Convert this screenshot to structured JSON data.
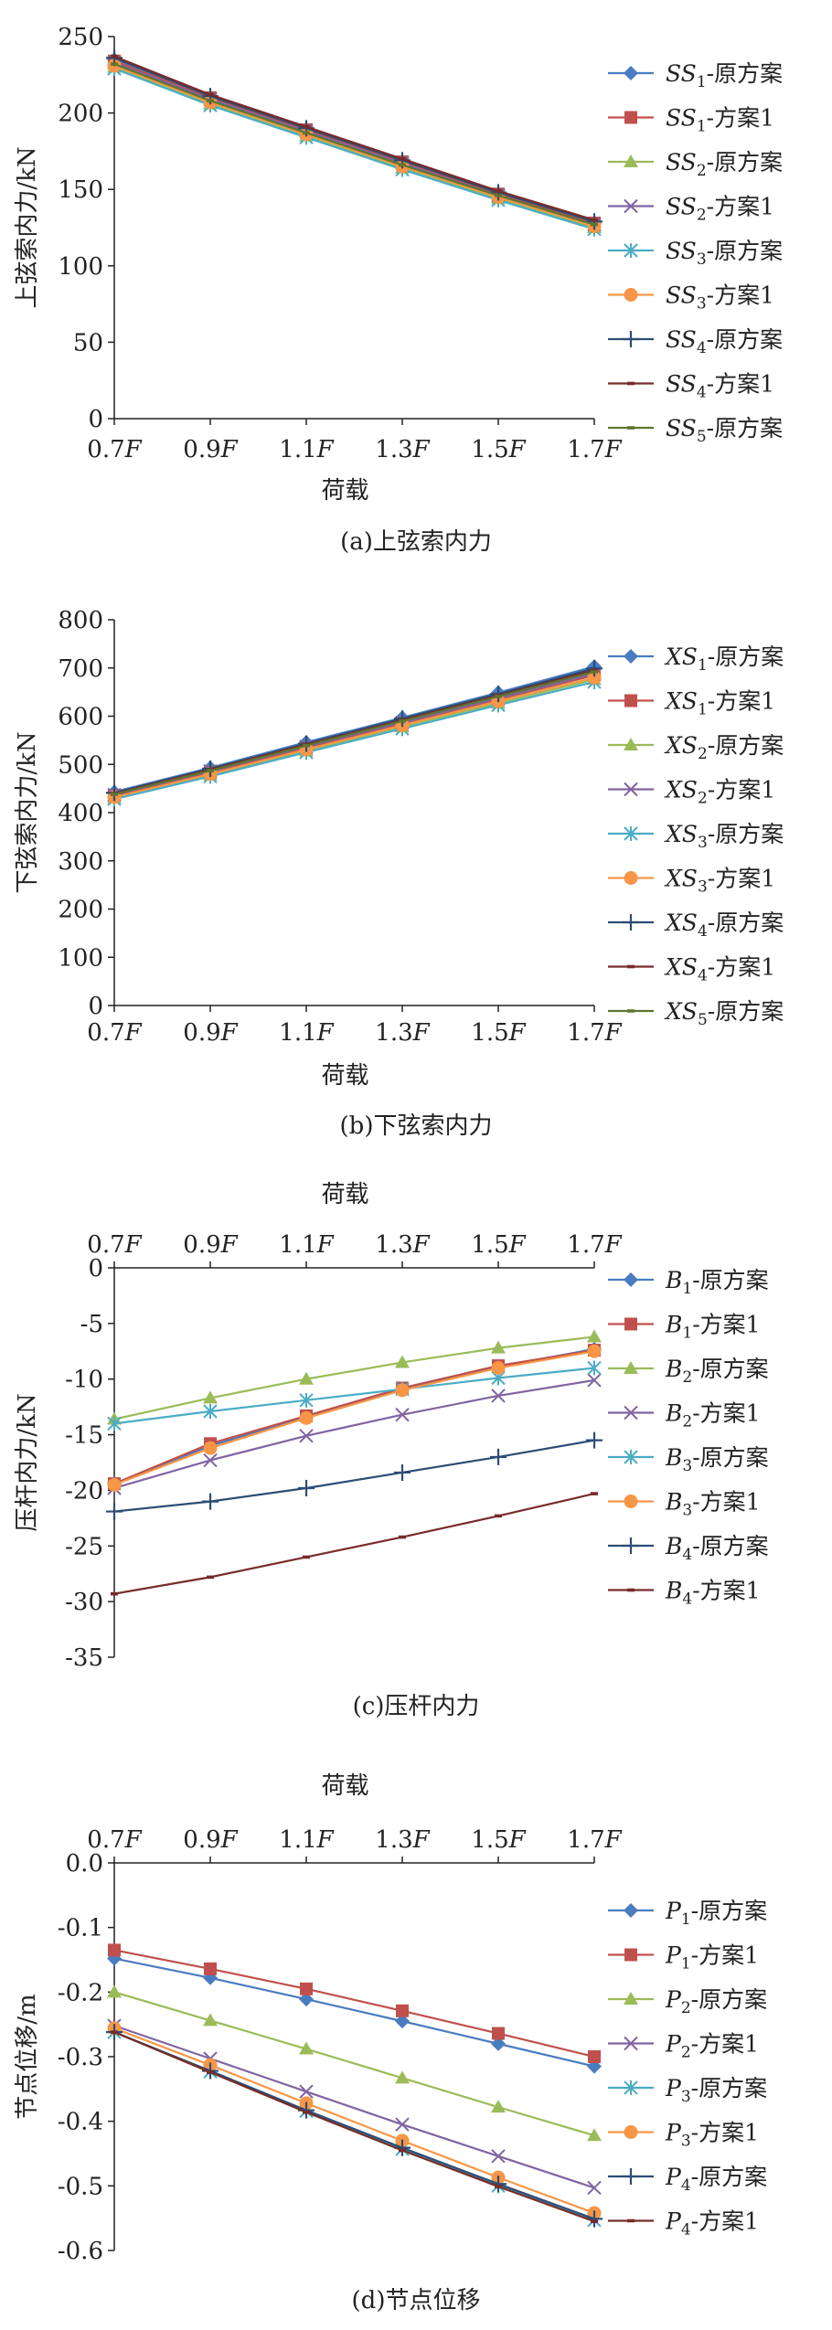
{
  "legend_suffix_original": "原方案",
  "legend_suffix_alt": "方案1",
  "charts": [
    {
      "type": "line",
      "caption": "(a)上弦索内力",
      "xlabel": "荷载",
      "ylabel": "上弦索内力/kN",
      "x_position": "bottom",
      "categories": [
        "0.7F",
        "0.9F",
        "1.1F",
        "1.3F",
        "1.5F",
        "1.7F"
      ],
      "ylim": [
        0,
        250
      ],
      "yticks": [
        0,
        50,
        100,
        150,
        200,
        250
      ],
      "legend_prefix": "SS",
      "series": [
        {
          "name": "SS1-原方案",
          "sub": "1",
          "alt": false,
          "color": "#4a7cc0",
          "marker": "diamond",
          "values": [
            235,
            210,
            189,
            168,
            147,
            128
          ]
        },
        {
          "name": "SS1-方案1",
          "sub": "1",
          "alt": true,
          "color": "#c0504d",
          "marker": "square",
          "values": [
            234,
            210,
            189,
            168,
            147,
            128
          ]
        },
        {
          "name": "SS2-原方案",
          "sub": "2",
          "alt": false,
          "color": "#9bbb59",
          "marker": "triangle",
          "values": [
            230,
            206,
            185,
            164,
            144,
            125
          ]
        },
        {
          "name": "SS2-方案1",
          "sub": "2",
          "alt": true,
          "color": "#8064a2",
          "marker": "x",
          "values": [
            233,
            209,
            188,
            167,
            146,
            127
          ]
        },
        {
          "name": "SS3-原方案",
          "sub": "3",
          "alt": false,
          "color": "#4bacc6",
          "marker": "asterisk",
          "values": [
            229,
            205,
            184,
            163,
            143,
            124
          ]
        },
        {
          "name": "SS3-方案1",
          "sub": "3",
          "alt": true,
          "color": "#f79646",
          "marker": "circle",
          "values": [
            231,
            207,
            186,
            165,
            145,
            126
          ]
        },
        {
          "name": "SS4-原方案",
          "sub": "4",
          "alt": false,
          "color": "#2c4d75",
          "marker": "plus",
          "values": [
            236,
            211,
            190,
            169,
            148,
            129
          ]
        },
        {
          "name": "SS4-方案1",
          "sub": "4",
          "alt": true,
          "color": "#772c2a",
          "marker": "dash",
          "values": [
            237,
            212,
            191,
            170,
            149,
            130
          ]
        },
        {
          "name": "SS5-原方案",
          "sub": "5",
          "alt": false,
          "color": "#5f7530",
          "marker": "dash",
          "values": [
            232,
            208,
            187,
            166,
            146,
            127
          ]
        }
      ]
    },
    {
      "type": "line",
      "caption": "(b)下弦索内力",
      "xlabel": "荷载",
      "ylabel": "下弦索内力/kN",
      "x_position": "bottom",
      "categories": [
        "0.7F",
        "0.9F",
        "1.1F",
        "1.3F",
        "1.5F",
        "1.7F"
      ],
      "ylim": [
        0,
        800
      ],
      "yticks": [
        0,
        100,
        200,
        300,
        400,
        500,
        600,
        700,
        800
      ],
      "legend_prefix": "XS",
      "series": [
        {
          "name": "XS1-原方案",
          "sub": "1",
          "alt": false,
          "color": "#4a7cc0",
          "marker": "diamond",
          "values": [
            443,
            493,
            546,
            597,
            649,
            703
          ]
        },
        {
          "name": "XS1-方案1",
          "sub": "1",
          "alt": true,
          "color": "#c0504d",
          "marker": "square",
          "values": [
            435,
            483,
            534,
            585,
            635,
            685
          ]
        },
        {
          "name": "XS2-原方案",
          "sub": "2",
          "alt": false,
          "color": "#9bbb59",
          "marker": "triangle",
          "values": [
            430,
            478,
            528,
            578,
            627,
            676
          ]
        },
        {
          "name": "XS2-方案1",
          "sub": "2",
          "alt": true,
          "color": "#8064a2",
          "marker": "x",
          "values": [
            437,
            486,
            537,
            587,
            637,
            688
          ]
        },
        {
          "name": "XS3-原方案",
          "sub": "3",
          "alt": false,
          "color": "#4bacc6",
          "marker": "asterisk",
          "values": [
            428,
            475,
            525,
            574,
            623,
            671
          ]
        },
        {
          "name": "XS3-方案1",
          "sub": "3",
          "alt": true,
          "color": "#f79646",
          "marker": "circle",
          "values": [
            432,
            480,
            531,
            581,
            631,
            680
          ]
        },
        {
          "name": "XS4-原方案",
          "sub": "4",
          "alt": false,
          "color": "#2c4d75",
          "marker": "plus",
          "values": [
            441,
            491,
            543,
            595,
            646,
            699
          ]
        },
        {
          "name": "XS4-方案1",
          "sub": "4",
          "alt": true,
          "color": "#772c2a",
          "marker": "dash",
          "values": [
            439,
            489,
            541,
            592,
            643,
            695
          ]
        },
        {
          "name": "XS5-原方案",
          "sub": "5",
          "alt": false,
          "color": "#5f7530",
          "marker": "dash",
          "values": [
            438,
            487,
            539,
            590,
            641,
            692
          ]
        }
      ]
    },
    {
      "type": "line",
      "caption": "(c)压杆内力",
      "xlabel": "荷载",
      "ylabel": "压杆内力/kN",
      "x_position": "top",
      "categories": [
        "0.7F",
        "0.9F",
        "1.1F",
        "1.3F",
        "1.5F",
        "1.7F"
      ],
      "ylim": [
        -35,
        0
      ],
      "yticks": [
        0,
        -5,
        -10,
        -15,
        -20,
        -25,
        -30,
        -35
      ],
      "legend_prefix": "B",
      "series": [
        {
          "name": "B1-原方案",
          "sub": "1",
          "alt": false,
          "color": "#4a7cc0",
          "marker": "diamond",
          "values": [
            -19.4,
            -16.0,
            -13.4,
            -10.9,
            -8.9,
            -7.3
          ]
        },
        {
          "name": "B1-方案1",
          "sub": "1",
          "alt": true,
          "color": "#c0504d",
          "marker": "square",
          "values": [
            -19.4,
            -15.8,
            -13.3,
            -10.8,
            -8.8,
            -7.4
          ]
        },
        {
          "name": "B2-原方案",
          "sub": "2",
          "alt": false,
          "color": "#9bbb59",
          "marker": "triangle",
          "values": [
            -13.6,
            -11.7,
            -10.0,
            -8.5,
            -7.2,
            -6.2
          ]
        },
        {
          "name": "B2-方案1",
          "sub": "2",
          "alt": true,
          "color": "#8064a2",
          "marker": "x",
          "values": [
            -19.8,
            -17.3,
            -15.1,
            -13.2,
            -11.5,
            -10.1
          ]
        },
        {
          "name": "B3-原方案",
          "sub": "3",
          "alt": false,
          "color": "#4bacc6",
          "marker": "asterisk",
          "values": [
            -14.0,
            -12.9,
            -11.9,
            -10.9,
            -9.9,
            -9.0
          ]
        },
        {
          "name": "B3-方案1",
          "sub": "3",
          "alt": true,
          "color": "#f79646",
          "marker": "circle",
          "values": [
            -19.5,
            -16.2,
            -13.5,
            -11.0,
            -9.0,
            -7.5
          ]
        },
        {
          "name": "B4-原方案",
          "sub": "4",
          "alt": false,
          "color": "#2c4d75",
          "marker": "plus",
          "values": [
            -21.9,
            -21.0,
            -19.8,
            -18.4,
            -17.0,
            -15.5
          ]
        },
        {
          "name": "B4-方案1",
          "sub": "4",
          "alt": true,
          "color": "#772c2a",
          "marker": "dash",
          "values": [
            -29.3,
            -27.8,
            -26.0,
            -24.2,
            -22.3,
            -20.3
          ]
        }
      ]
    },
    {
      "type": "line",
      "caption": "(d)节点位移",
      "xlabel": "荷载",
      "ylabel": "节点位移/m",
      "x_position": "top",
      "categories": [
        "0.7F",
        "0.9F",
        "1.1F",
        "1.3F",
        "1.5F",
        "1.7F"
      ],
      "ylim": [
        -0.6,
        0.0
      ],
      "yticks": [
        "0.0",
        "-0.1",
        "-0.2",
        "-0.3",
        "-0.4",
        "-0.5",
        "-0.6"
      ],
      "legend_prefix": "P",
      "series": [
        {
          "name": "P1-原方案",
          "sub": "1",
          "alt": false,
          "color": "#4a7cc0",
          "marker": "diamond",
          "values": [
            -0.148,
            -0.178,
            -0.211,
            -0.245,
            -0.28,
            -0.315
          ]
        },
        {
          "name": "P1-方案1",
          "sub": "1",
          "alt": true,
          "color": "#c0504d",
          "marker": "square",
          "values": [
            -0.135,
            -0.164,
            -0.195,
            -0.229,
            -0.264,
            -0.3
          ]
        },
        {
          "name": "P2-原方案",
          "sub": "2",
          "alt": false,
          "color": "#9bbb59",
          "marker": "triangle",
          "values": [
            -0.2,
            -0.244,
            -0.288,
            -0.333,
            -0.378,
            -0.422
          ]
        },
        {
          "name": "P2-方案1",
          "sub": "2",
          "alt": true,
          "color": "#8064a2",
          "marker": "x",
          "values": [
            -0.252,
            -0.303,
            -0.354,
            -0.405,
            -0.454,
            -0.503
          ]
        },
        {
          "name": "P3-原方案",
          "sub": "3",
          "alt": false,
          "color": "#4bacc6",
          "marker": "asterisk",
          "values": [
            -0.262,
            -0.323,
            -0.384,
            -0.443,
            -0.5,
            -0.553
          ]
        },
        {
          "name": "P3-方案1",
          "sub": "3",
          "alt": true,
          "color": "#f79646",
          "marker": "circle",
          "values": [
            -0.256,
            -0.313,
            -0.372,
            -0.43,
            -0.487,
            -0.542
          ]
        },
        {
          "name": "P4-原方案",
          "sub": "4",
          "alt": false,
          "color": "#2c4d75",
          "marker": "plus",
          "values": [
            -0.262,
            -0.322,
            -0.383,
            -0.441,
            -0.497,
            -0.551
          ]
        },
        {
          "name": "P4-方案1",
          "sub": "4",
          "alt": true,
          "color": "#772c2a",
          "marker": "dash",
          "values": [
            -0.262,
            -0.324,
            -0.386,
            -0.445,
            -0.501,
            -0.555
          ]
        }
      ]
    }
  ],
  "chart_data": [
    {
      "type": "line",
      "caption": "(a)上弦索内力",
      "xlabel": "荷载",
      "ylabel": "上弦索内力/kN",
      "ylim": [
        0,
        250
      ],
      "legend_position": "right"
    },
    {
      "type": "line",
      "caption": "(b)下弦索内力",
      "xlabel": "荷载",
      "ylabel": "下弦索内力/kN",
      "ylim": [
        0,
        800
      ],
      "legend_position": "right"
    },
    {
      "type": "line",
      "caption": "(c)压杆内力",
      "xlabel": "荷载",
      "ylabel": "压杆内力/kN",
      "ylim": [
        -35,
        0
      ],
      "legend_position": "right"
    },
    {
      "type": "line",
      "caption": "(d)节点位移",
      "xlabel": "荷载",
      "ylabel": "节点位移/m",
      "ylim": [
        -0.6,
        0.0
      ],
      "legend_position": "right"
    }
  ]
}
